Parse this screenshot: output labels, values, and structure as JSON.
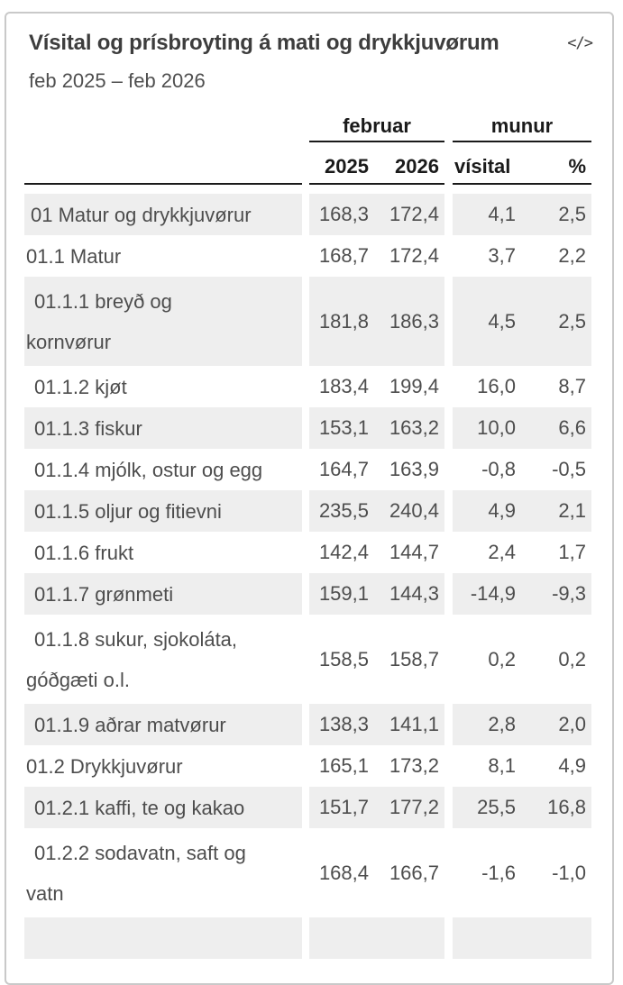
{
  "page": {
    "title": "Vísital og prísbroyting á mati og drykkjuvørum",
    "subtitle": "feb 2025 – feb 2026",
    "embed_button": "</>"
  },
  "table": {
    "groups": [
      "februar",
      "munur"
    ],
    "col_headers": [
      "2025",
      "2026",
      "vísital",
      "%"
    ],
    "rows": [
      {
        "label": "01 Matur og drykkjuvørur",
        "level": 1,
        "v2025": "168,3",
        "v2026": "172,4",
        "diff": "4,1",
        "pct": "2,5"
      },
      {
        "label": "01.1 Matur",
        "level": 2,
        "v2025": "168,7",
        "v2026": "172,4",
        "diff": "3,7",
        "pct": "2,2"
      },
      {
        "label": "01.1.1 breyð og\nkornvørur",
        "level": 3,
        "two_line": true,
        "v2025": "181,8",
        "v2026": "186,3",
        "diff": "4,5",
        "pct": "2,5"
      },
      {
        "label": "01.1.2 kjøt",
        "level": 3,
        "v2025": "183,4",
        "v2026": "199,4",
        "diff": "16,0",
        "pct": "8,7"
      },
      {
        "label": "01.1.3 fiskur",
        "level": 3,
        "v2025": "153,1",
        "v2026": "163,2",
        "diff": "10,0",
        "pct": "6,6"
      },
      {
        "label": "01.1.4 mjólk, ostur og egg",
        "level": 3,
        "v2025": "164,7",
        "v2026": "163,9",
        "diff": "-0,8",
        "pct": "-0,5"
      },
      {
        "label": "01.1.5 oljur og fitievni",
        "level": 3,
        "v2025": "235,5",
        "v2026": "240,4",
        "diff": "4,9",
        "pct": "2,1"
      },
      {
        "label": "01.1.6 frukt",
        "level": 3,
        "v2025": "142,4",
        "v2026": "144,7",
        "diff": "2,4",
        "pct": "1,7"
      },
      {
        "label": "01.1.7 grønmeti",
        "level": 3,
        "v2025": "159,1",
        "v2026": "144,3",
        "diff": "-14,9",
        "pct": "-9,3"
      },
      {
        "label": "01.1.8 sukur, sjokoláta,\ngóðgæti o.l.",
        "level": 3,
        "two_line": true,
        "v2025": "158,5",
        "v2026": "158,7",
        "diff": "0,2",
        "pct": "0,2"
      },
      {
        "label": "01.1.9 aðrar matvørur",
        "level": 3,
        "v2025": "138,3",
        "v2026": "141,1",
        "diff": "2,8",
        "pct": "2,0"
      },
      {
        "label": "01.2 Drykkjuvørur",
        "level": 2,
        "v2025": "165,1",
        "v2026": "173,2",
        "diff": "8,1",
        "pct": "4,9"
      },
      {
        "label": "01.2.1 kaffi, te og kakao",
        "level": 3,
        "v2025": "151,7",
        "v2026": "177,2",
        "diff": "25,5",
        "pct": "16,8"
      },
      {
        "label": "01.2.2 sodavatn, saft og\nvatn",
        "level": 3,
        "two_line": true,
        "v2025": "168,4",
        "v2026": "166,7",
        "diff": "-1,6",
        "pct": "-1,0"
      },
      {
        "partial": true
      }
    ]
  },
  "colors": {
    "stripe": "#eeeeee",
    "body-text": "#4d4d4d",
    "header-text": "#1a1a1a",
    "title-text": "#3d3d3d",
    "subtitle-text": "#4f4f4f",
    "rule-dark": "#1a1a1a",
    "border": "#c9c9c9"
  }
}
